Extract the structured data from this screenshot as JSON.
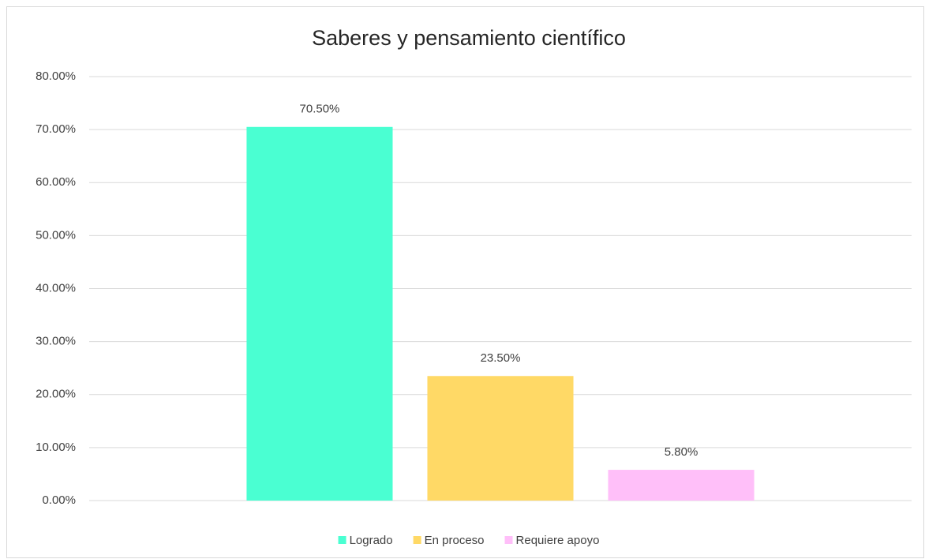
{
  "chart_data": {
    "type": "bar",
    "title": "Saberes y pensamiento científico",
    "categories": [
      null
    ],
    "series": [
      {
        "name": "Logrado",
        "color": "#4affd2",
        "values": [
          70.5
        ],
        "value_labels": [
          "70.50%"
        ]
      },
      {
        "name": "En proceso",
        "color": "#ffd966",
        "values": [
          23.5
        ],
        "value_labels": [
          "23.50%"
        ]
      },
      {
        "name": "Requiere apoyo",
        "color": "#ffbff9",
        "values": [
          5.8
        ],
        "value_labels": [
          "5.80%"
        ]
      }
    ],
    "ylim": [
      0,
      80
    ],
    "yticks": [
      {
        "value": 0,
        "label": "0.00%"
      },
      {
        "value": 10,
        "label": "10.00%"
      },
      {
        "value": 20,
        "label": "20.00%"
      },
      {
        "value": 30,
        "label": "30.00%"
      },
      {
        "value": 40,
        "label": "40.00%"
      },
      {
        "value": 50,
        "label": "50.00%"
      },
      {
        "value": 60,
        "label": "60.00%"
      },
      {
        "value": 70,
        "label": "70.00%"
      },
      {
        "value": 80,
        "label": "80.00%"
      }
    ],
    "grid": true,
    "legend": "bottom"
  }
}
